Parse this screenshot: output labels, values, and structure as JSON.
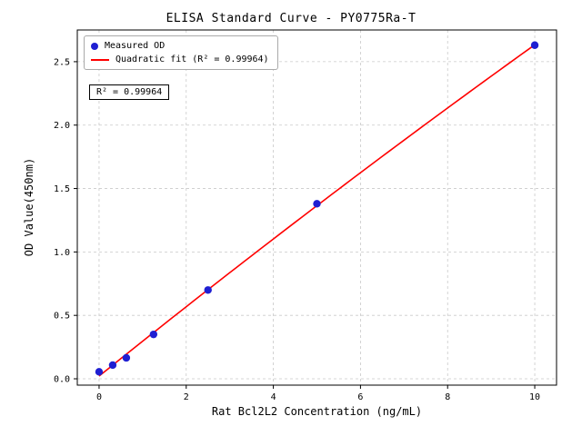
{
  "chart_data": {
    "type": "scatter",
    "title": "ELISA Standard Curve - PY0775Ra-T",
    "xlabel": "Rat Bcl2L2 Concentration (ng/mL)",
    "ylabel": "OD Value(450nm)",
    "xlim": [
      -0.5,
      10.5
    ],
    "ylim": [
      -0.05,
      2.75
    ],
    "xticks": [
      0,
      2,
      4,
      6,
      8,
      10
    ],
    "xtick_labels": [
      "0",
      "2",
      "4",
      "6",
      "8",
      "10"
    ],
    "yticks": [
      0.0,
      0.5,
      1.0,
      1.5,
      2.0,
      2.5
    ],
    "ytick_labels": [
      "0.0",
      "0.5",
      "1.0",
      "1.5",
      "2.0",
      "2.5"
    ],
    "grid": true,
    "grid_style": "dashed",
    "legend_position": "upper-left",
    "series": [
      {
        "name": "Measured OD",
        "type": "scatter",
        "color": "#1f1fd2",
        "x": [
          0,
          0.3125,
          0.625,
          1.25,
          2.5,
          5,
          10
        ],
        "y": [
          0.055,
          0.108,
          0.165,
          0.35,
          0.7,
          1.38,
          2.63
        ]
      },
      {
        "name": "Quadratic fit (R² = 0.99964)",
        "type": "line",
        "fit": "quadratic",
        "color": "#ff0000",
        "x_range": [
          0,
          10
        ]
      }
    ],
    "annotation": "R² = 0.99964",
    "colors": {
      "points": "#1f1fd2",
      "fit_line": "#ff0000",
      "grid": "#c9c9c9",
      "spine": "#000000"
    }
  },
  "legend": {
    "measured_label": "Measured OD",
    "fit_label": "Quadratic fit (R² = 0.99964)"
  },
  "annotation_text": "R² = 0.99964"
}
